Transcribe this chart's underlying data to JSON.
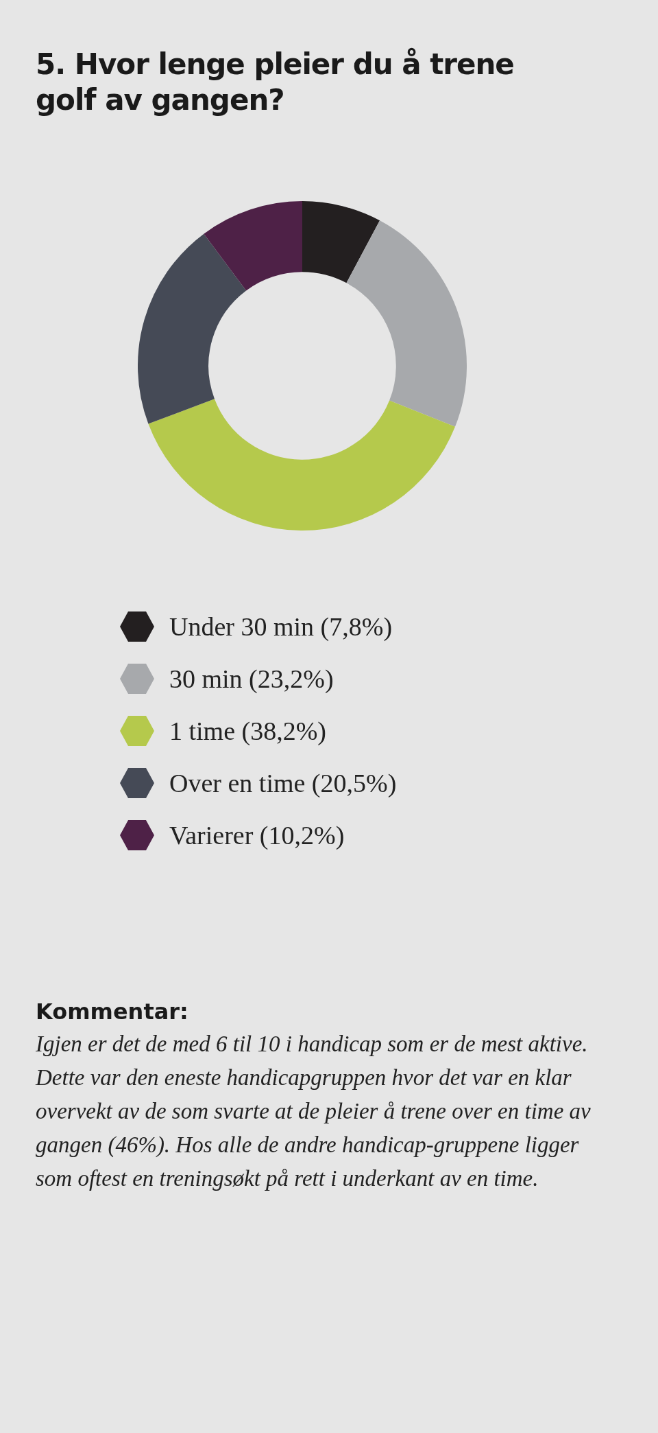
{
  "chart_data": {
    "type": "donut",
    "title": "5. Hvor lenge pleier du å trene golf av gangen?",
    "categories": [
      "Under 30 min (7,8%)",
      "30 min (23,2%)",
      "1 time (38,2%)",
      "Over en time (20,5%)",
      "Varierer (10,2%)"
    ],
    "values": [
      7.8,
      23.2,
      38.2,
      20.5,
      10.2
    ],
    "colors": [
      "#231f20",
      "#a7a9ac",
      "#b5c94c",
      "#454a56",
      "#4e2147"
    ],
    "legend": "bottom",
    "annotations": [
      "Kommentar:",
      "Igjen er det de med 6 til 10 i handicap som er de mest aktive. Dette var den eneste handicapgruppen hvor det var en klar overvekt av de som svarte at de pleier å trene over en time av gangen (46%). Hos alle de andre handicap-gruppene ligger som oftest en treningsøkt på rett i underkant av en time."
    ]
  }
}
